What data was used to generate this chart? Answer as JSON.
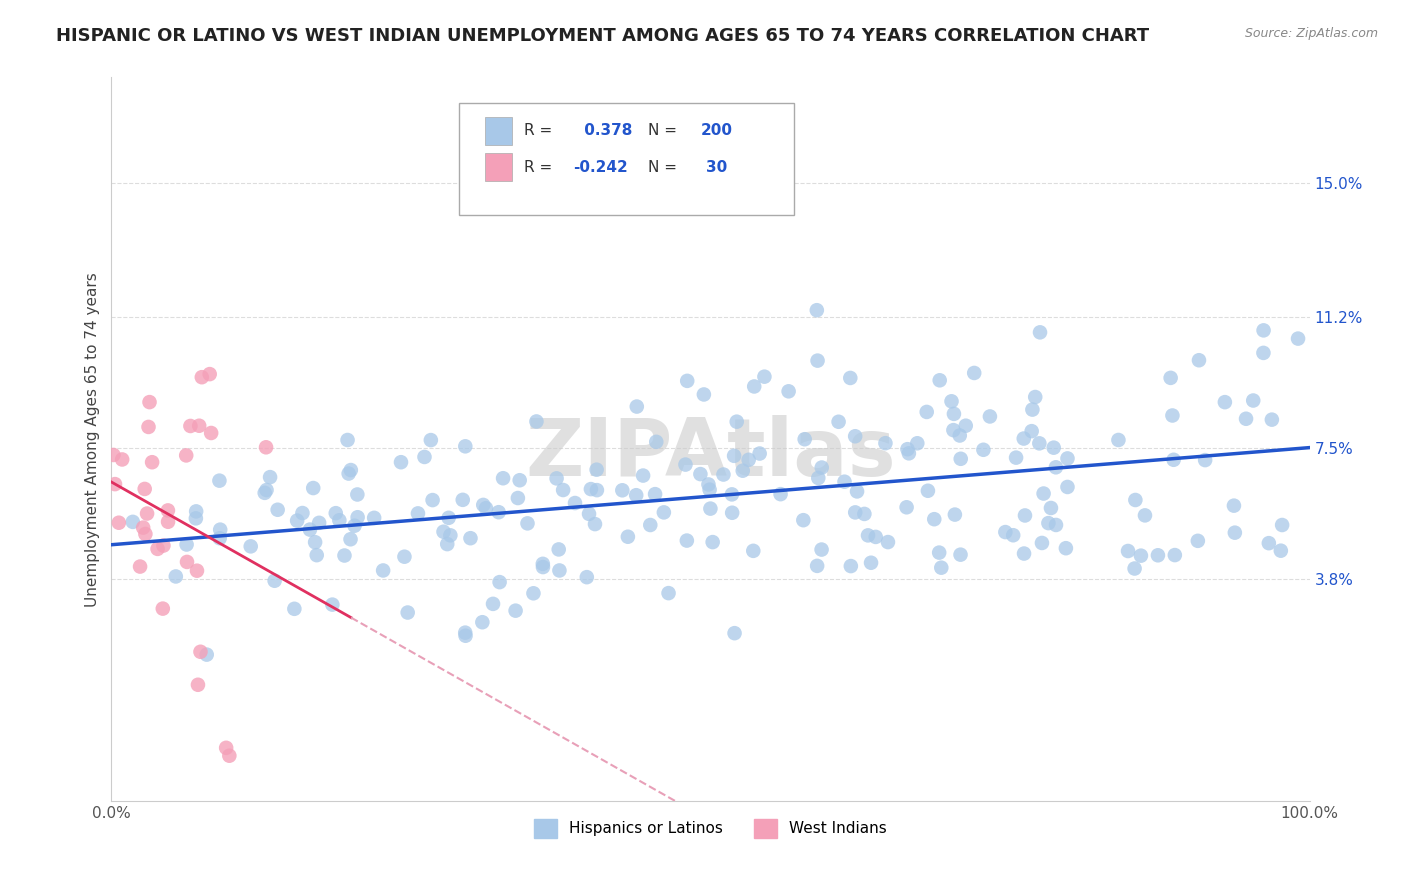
{
  "title": "HISPANIC OR LATINO VS WEST INDIAN UNEMPLOYMENT AMONG AGES 65 TO 74 YEARS CORRELATION CHART",
  "source": "Source: ZipAtlas.com",
  "ylabel": "Unemployment Among Ages 65 to 74 years",
  "xlim": [
    0,
    100
  ],
  "ylim": [
    -2.5,
    18
  ],
  "yticks": [
    3.8,
    7.5,
    11.2,
    15.0
  ],
  "xticks": [
    0,
    100
  ],
  "xticklabels": [
    "0.0%",
    "100.0%"
  ],
  "yticklabels": [
    "3.8%",
    "7.5%",
    "11.2%",
    "15.0%"
  ],
  "r_hispanic": 0.378,
  "n_hispanic": 200,
  "r_west_indian": -0.242,
  "n_west_indian": 30,
  "hispanic_color": "#a8c8e8",
  "west_indian_color": "#f4a0b8",
  "hispanic_line_color": "#2255cc",
  "west_indian_solid_color": "#e03060",
  "west_indian_dash_color": "#e8a0b8",
  "legend_label_hispanic": "Hispanics or Latinos",
  "legend_label_west_indian": "West Indians",
  "watermark": "ZIPAtlas",
  "background_color": "#ffffff",
  "grid_color": "#dddddd",
  "title_fontsize": 13,
  "axis_label_fontsize": 11,
  "tick_fontsize": 11,
  "legend_fontsize": 11,
  "r_label_color": "#2255cc",
  "seed": 12345
}
